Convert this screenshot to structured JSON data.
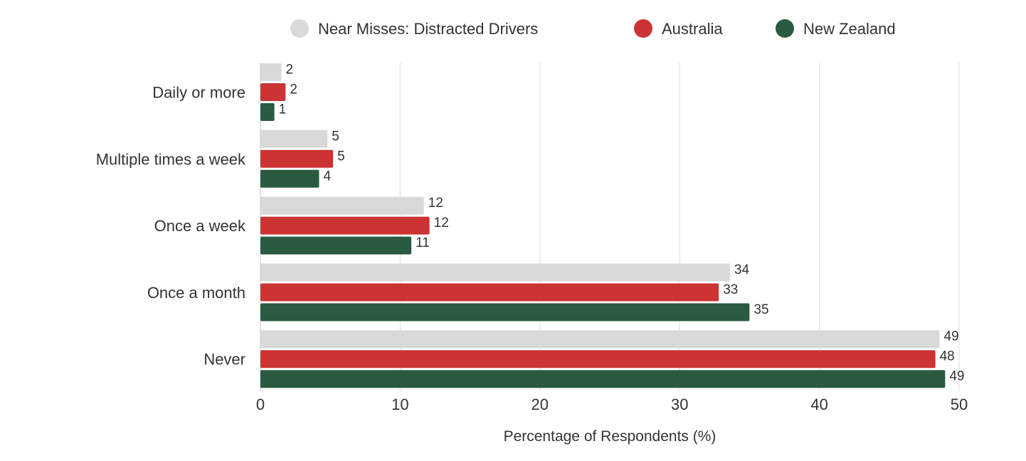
{
  "chart_data": {
    "type": "bar",
    "orientation": "horizontal",
    "categories": [
      "Daily or more",
      "Multiple times a week",
      "Once a week",
      "Once a month",
      "Never"
    ],
    "series": [
      {
        "name": "Near Misses: Distracted Drivers",
        "color": "#d9d9d9",
        "values": [
          1.5,
          4.8,
          11.7,
          33.6,
          48.6
        ],
        "labels": [
          "2",
          "5",
          "12",
          "34",
          "49"
        ]
      },
      {
        "name": "Australia",
        "color": "#cc3333",
        "values": [
          1.8,
          5.2,
          12.1,
          32.8,
          48.3
        ],
        "labels": [
          "2",
          "5",
          "12",
          "33",
          "48"
        ]
      },
      {
        "name": "New Zealand",
        "color": "#2a5a3f",
        "values": [
          1.0,
          4.2,
          10.8,
          35.0,
          49.0
        ],
        "labels": [
          "1",
          "4",
          "11",
          "35",
          "49"
        ]
      }
    ],
    "xlabel": "Percentage of Respondents (%)",
    "ylabel": "",
    "xlim": [
      0,
      50
    ],
    "xticks": [
      "0",
      "10",
      "20",
      "30",
      "40",
      "50"
    ],
    "grid": true,
    "legend_position": "top"
  }
}
